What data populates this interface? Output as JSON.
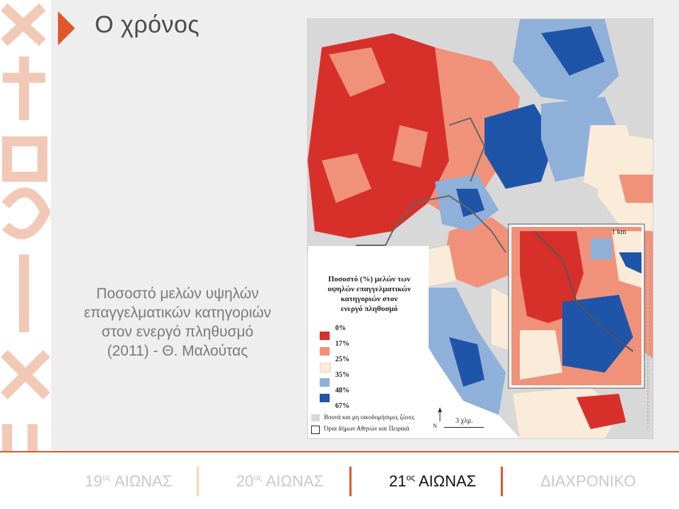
{
  "slide": {
    "title": "Ο χρόνος",
    "caption_lines": [
      "Ποσοστό μελών υψηλών",
      "επαγγελματικών κατηγοριών",
      "στον ενεργό πληθυσμό",
      "(2011) - Θ. Μαλούτας"
    ],
    "accent_color": "#e0572b"
  },
  "map": {
    "legend_title_lines": [
      "Ποσοστό (%) μελών των",
      "υψηλών επαγγελματικών",
      "κατηγοριών στον",
      "ενεργό πληθυσμό"
    ],
    "legend_stops": [
      "0%",
      "17%",
      "25%",
      "35%",
      "48%",
      "67%"
    ],
    "legend_colors": [
      "#d7302a",
      "#f0927a",
      "#fbecd9",
      "#8fb0d9",
      "#1f55a8"
    ],
    "note_mountains": "Βουνά και μη οικοδομήσιμες ζώνες",
    "note_borders": "Όρια δήμων Αθηνών και Πειραιά",
    "scale_label": "3 χλμ.",
    "inset_scale_label": "1 km",
    "north_label": "N"
  },
  "nav": {
    "items": [
      {
        "num": "19",
        "sup": "ος",
        "label": "ΑΙΩΝΑΣ"
      },
      {
        "num": "20",
        "sup": "ος",
        "label": "ΑΙΩΝΑΣ"
      },
      {
        "num": "21",
        "sup": "ος",
        "label": "ΑΙΩΝΑΣ"
      },
      {
        "label": "ΔΙΑΧΡΟΝΙΚΟ"
      }
    ],
    "active_index": 2
  }
}
